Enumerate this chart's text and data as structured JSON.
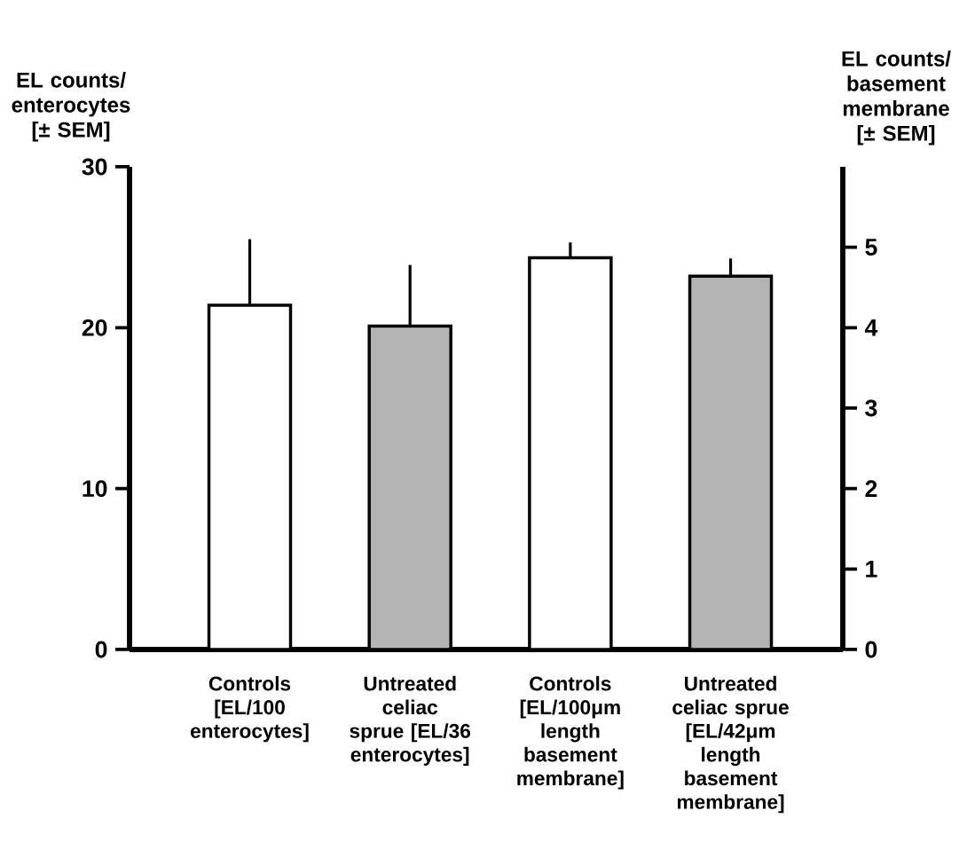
{
  "chart_data": {
    "type": "bar",
    "ylabel": "EL counts/ enterocytes [± SEM]",
    "y2label": "EL counts/ basement membrane [± SEM]",
    "categories": [
      "Controls [EL/100 enterocytes]",
      "Untreated celiac sprue [EL/36 enterocytes]",
      "Controls [EL/100μm length basement membrane]",
      "Untreated celiac sprue [EL/42μm length basement membrane]"
    ],
    "series": [
      {
        "values": [
          21.4,
          20.1,
          null,
          null
        ],
        "colors": [
          "#ffffff",
          "#b4b4b4",
          null,
          null
        ],
        "errors": [
          [
            21.4,
            25.5
          ],
          [
            20.1,
            23.9
          ],
          null,
          null
        ]
      },
      {
        "axis": "y2",
        "values": [
          null,
          null,
          4.87,
          4.64
        ],
        "colors": [
          null,
          null,
          "#ffffff",
          "#b4b4b4"
        ],
        "errors": [
          null,
          null,
          [
            4.87,
            5.06
          ],
          [
            4.64,
            4.86
          ]
        ]
      }
    ],
    "ylim": [
      0,
      30
    ],
    "yticks": [
      0,
      10,
      20,
      30
    ],
    "y2lim": [
      0,
      6
    ],
    "y2ticks": [
      0,
      1,
      2,
      3,
      4,
      5
    ]
  }
}
